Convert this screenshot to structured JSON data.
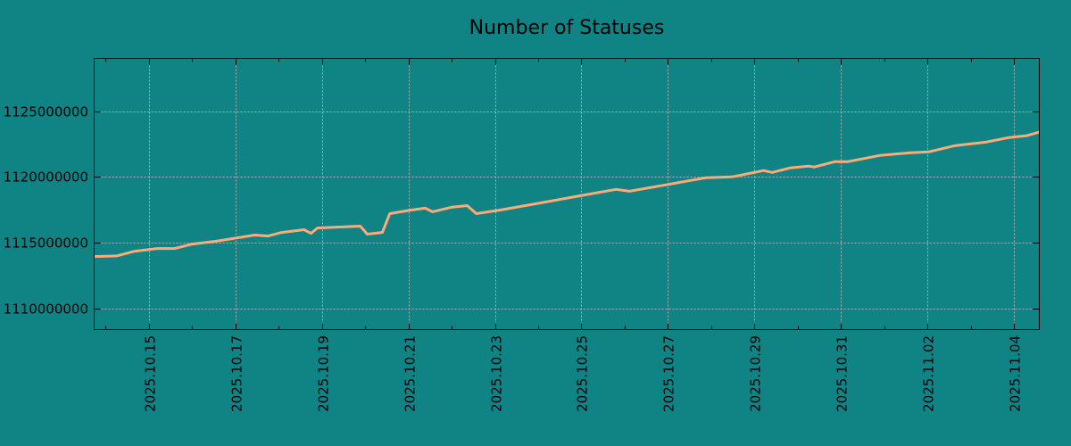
{
  "chart_data": {
    "type": "line",
    "title": "Number of Statuses",
    "xlabel": "",
    "ylabel": "",
    "x_origin": "2025-10-15",
    "x_unit": "days since 2025-10-15",
    "xlim": [
      -1.26,
      20.58
    ],
    "ylim": [
      1108400000,
      1129000000
    ],
    "grid": true,
    "x_ticks": [
      0,
      2,
      4,
      6,
      8,
      10,
      12,
      14,
      16,
      18,
      20
    ],
    "x_tick_labels": [
      "2025.10.15",
      "2025.10.17",
      "2025.10.19",
      "2025.10.21",
      "2025.10.23",
      "2025.10.25",
      "2025.10.27",
      "2025.10.29",
      "2025.10.31",
      "2025.11.02",
      "2025.11.04"
    ],
    "y_ticks": [
      1110000000,
      1115000000,
      1120000000,
      1125000000
    ],
    "y_tick_labels": [
      "1110000000",
      "1115000000",
      "1120000000",
      "1125000000"
    ],
    "colors": {
      "background": "#108385",
      "line": "#ffaa77",
      "grid": "#b0b0b0",
      "axes": "#000000"
    },
    "series": [
      {
        "name": "statuses",
        "x": [
          -1.26,
          -0.74,
          -0.33,
          0.19,
          0.6,
          1.01,
          1.53,
          2.45,
          2.76,
          3.07,
          3.59,
          3.75,
          3.9,
          4.41,
          4.89,
          5.05,
          5.4,
          5.57,
          6.06,
          6.39,
          6.56,
          6.99,
          7.36,
          7.57,
          8.12,
          8.95,
          9.98,
          10.8,
          11.11,
          11.94,
          12.87,
          13.48,
          14.21,
          14.41,
          14.82,
          15.24,
          15.38,
          15.86,
          16.16,
          16.89,
          17.61,
          18.02,
          18.64,
          19.36,
          19.88,
          20.29,
          20.58
        ],
        "values": [
          1113950000,
          1114000000,
          1114350000,
          1114560000,
          1114560000,
          1114900000,
          1115100000,
          1115580000,
          1115510000,
          1115780000,
          1115990000,
          1115710000,
          1116120000,
          1116190000,
          1116260000,
          1115650000,
          1115780000,
          1117210000,
          1117480000,
          1117620000,
          1117350000,
          1117690000,
          1117820000,
          1117210000,
          1117480000,
          1117960000,
          1118570000,
          1119050000,
          1118910000,
          1119390000,
          1119930000,
          1120000000,
          1120480000,
          1120340000,
          1120680000,
          1120820000,
          1120750000,
          1121160000,
          1121160000,
          1121630000,
          1121840000,
          1121900000,
          1122380000,
          1122650000,
          1122990000,
          1123130000,
          1123400000
        ]
      }
    ]
  }
}
